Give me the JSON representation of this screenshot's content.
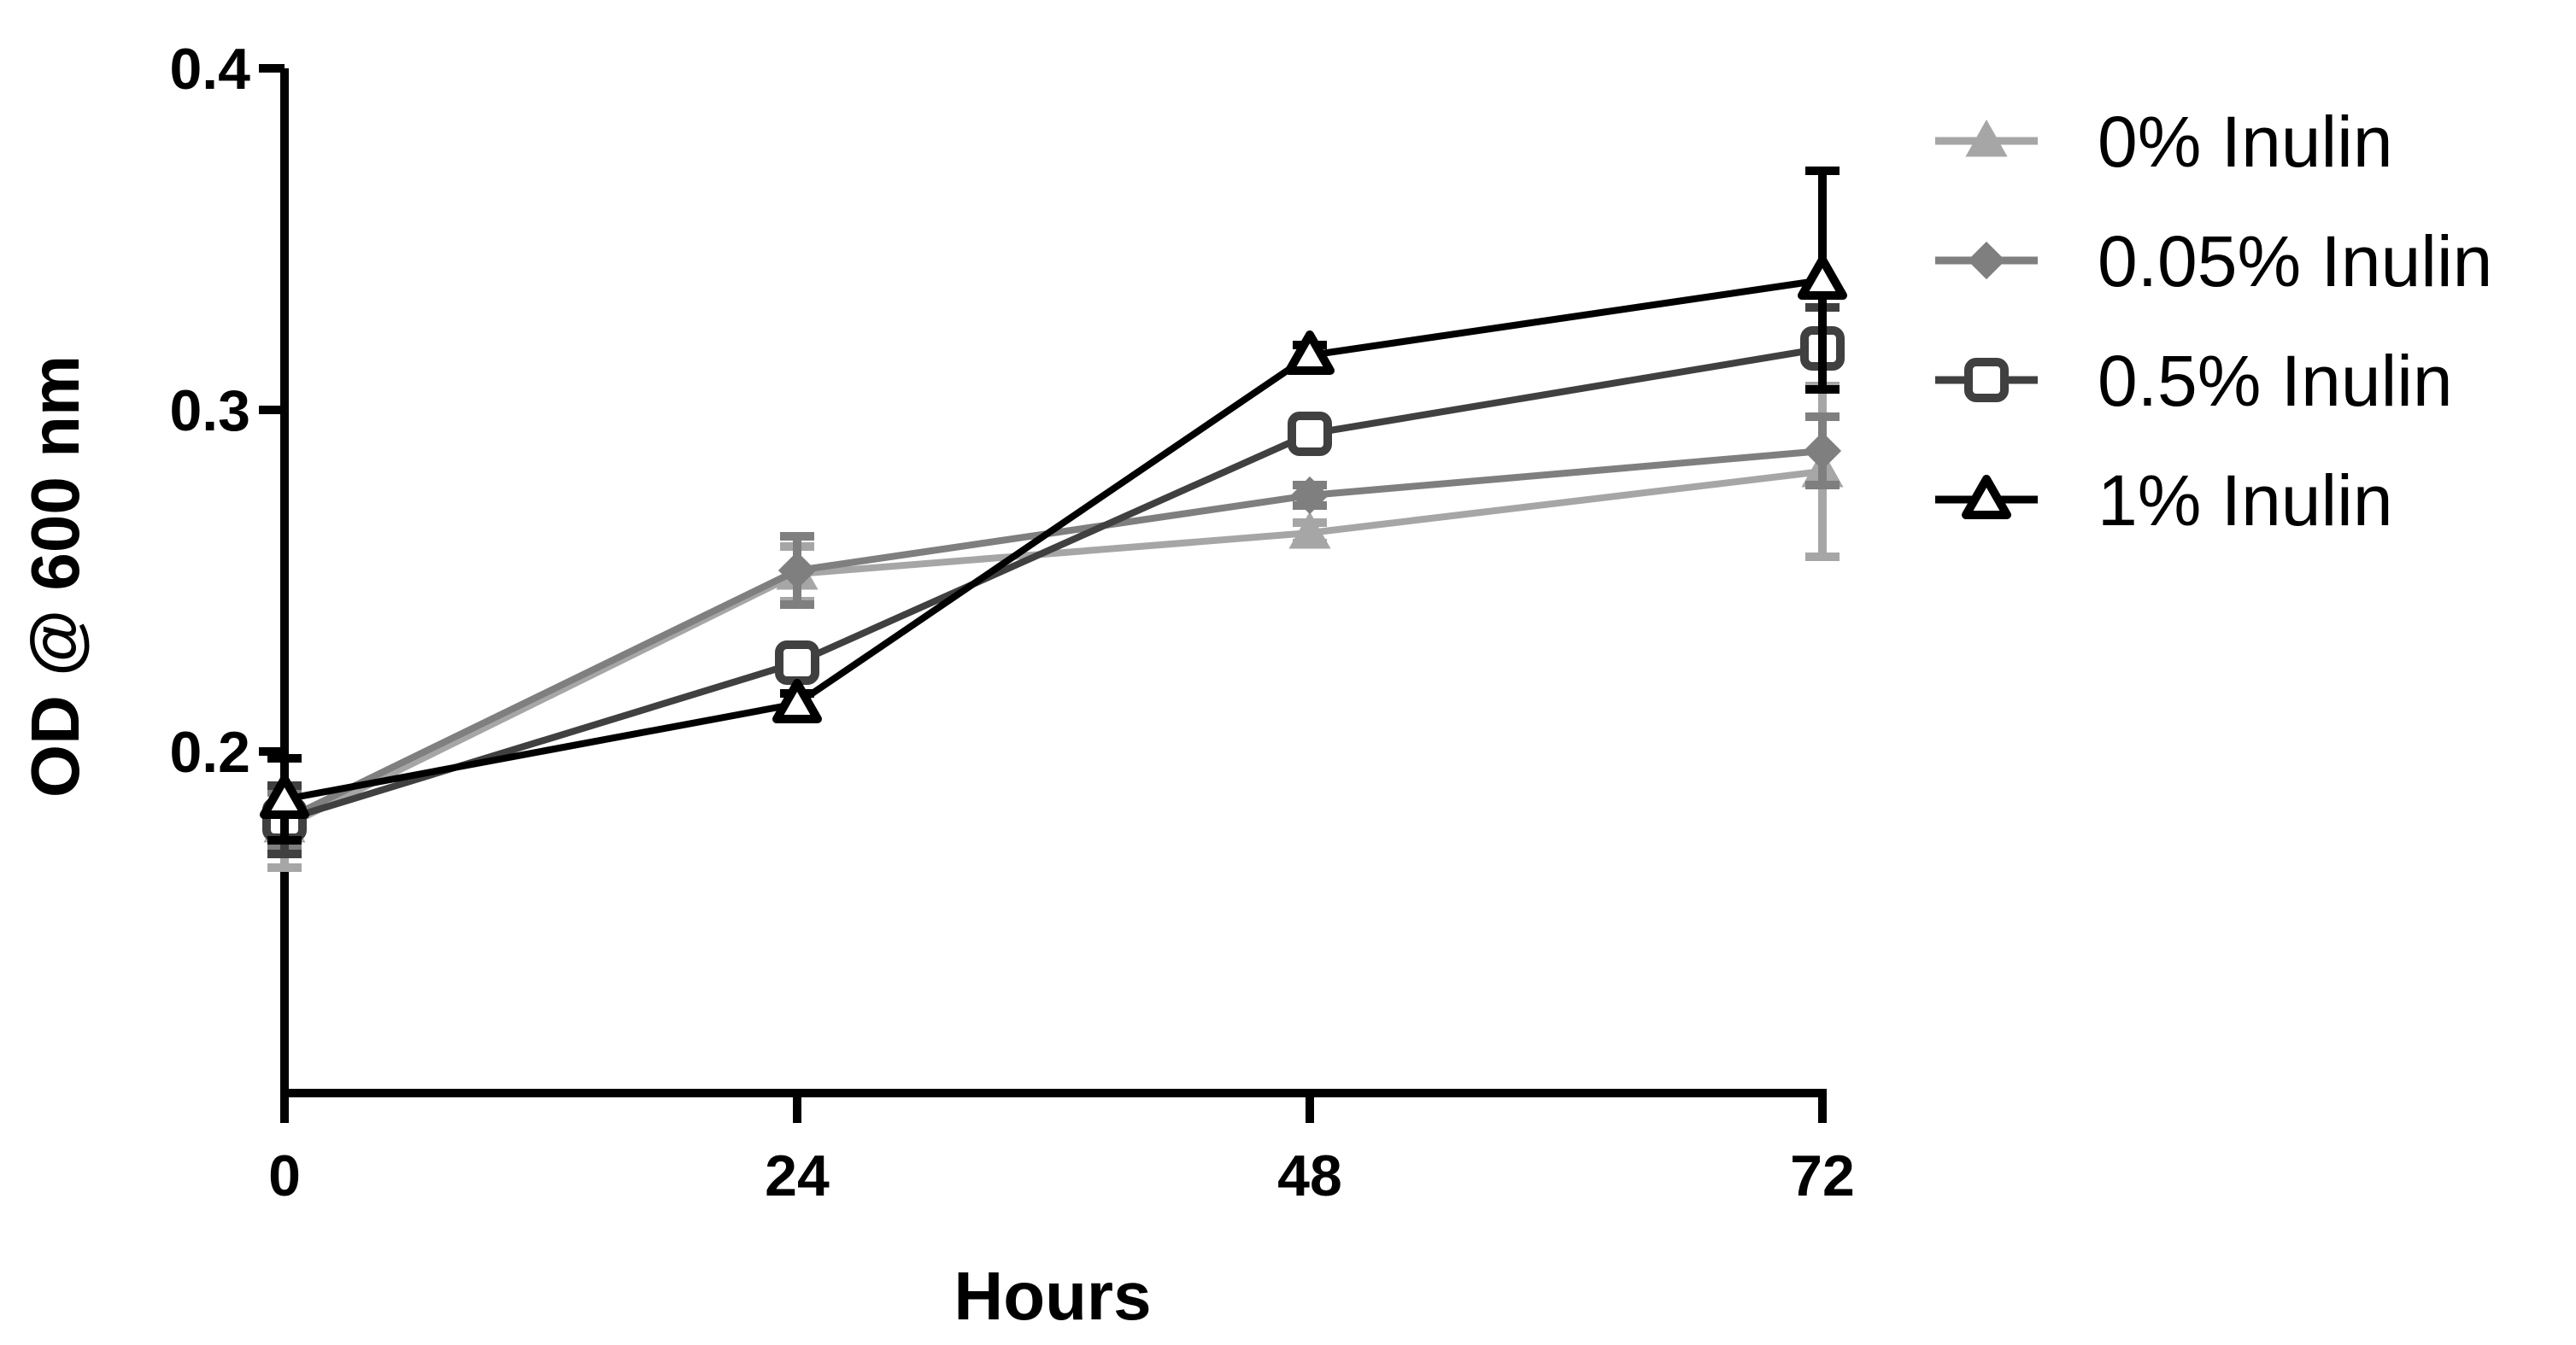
{
  "chart_data": {
    "type": "line",
    "title": "",
    "xlabel": "Hours",
    "ylabel": "OD @ 600 nm",
    "x": [
      0,
      24,
      48,
      72
    ],
    "x_ticks": [
      "0",
      "24",
      "48",
      "72"
    ],
    "y_ticks": [
      "0.2",
      "0.3",
      "0.4"
    ],
    "xlim": [
      0,
      72
    ],
    "ylim": [
      0.1,
      0.4
    ],
    "grid": false,
    "legend_position": "top-right",
    "series": [
      {
        "name": "0% Inulin",
        "marker": "filled-triangle",
        "color": "#a6a6a6",
        "values": [
          0.178,
          0.252,
          0.264,
          0.282
        ],
        "error": [
          0.012,
          0.008,
          0.003,
          0.025
        ]
      },
      {
        "name": "0.05% Inulin",
        "marker": "filled-diamond",
        "color": "#7f7f7f",
        "values": [
          0.18,
          0.253,
          0.275,
          0.288
        ],
        "error": [
          0.008,
          0.01,
          0.003,
          0.01
        ]
      },
      {
        "name": "0.5% Inulin",
        "marker": "open-square",
        "color": "#404040",
        "values": [
          0.18,
          0.226,
          0.293,
          0.318
        ],
        "error": [
          0.01,
          0.004,
          0.004,
          0.012
        ]
      },
      {
        "name": "1% Inulin",
        "marker": "open-triangle",
        "color": "#000000",
        "values": [
          0.186,
          0.214,
          0.316,
          0.338
        ],
        "error": [
          0.012,
          0.003,
          0.003,
          0.032
        ]
      }
    ]
  }
}
